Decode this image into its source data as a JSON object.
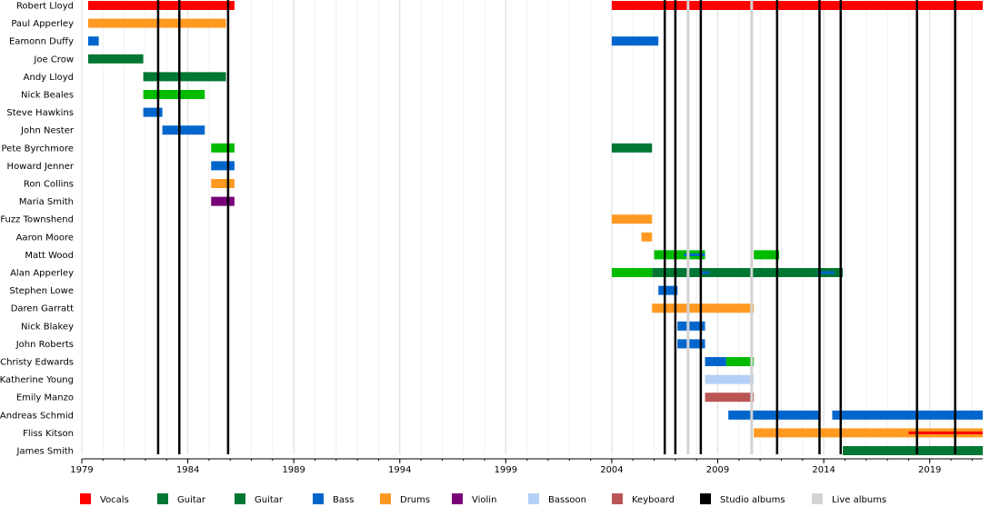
{
  "chart_data": {
    "type": "timeline",
    "x_range": [
      1979.0,
      2021.5
    ],
    "major_ticks": [
      1979,
      1984,
      1989,
      1994,
      1999,
      2004,
      2009,
      2014,
      2019
    ],
    "tick_labels": [
      "1979",
      "1984",
      "1989",
      "1994",
      "1999",
      "2004",
      "2009",
      "2014",
      "2019"
    ],
    "members": [
      "Robert Lloyd",
      "Paul Apperley",
      "Eamonn Duffy",
      "Joe Crow",
      "Andy Lloyd",
      "Nick Beales",
      "Steve Hawkins",
      "John Nester",
      "Pete Byrchmore",
      "Howard Jenner",
      "Ron Collins",
      "Maria Smith",
      "Fuzz Townshend",
      "Aaron Moore",
      "Matt Wood",
      "Alan Apperley",
      "Stephen Lowe",
      "Daren Garratt",
      "Nick Blakey",
      "John Roberts",
      "Christy Edwards",
      "Katherine Young",
      "Emily Manzo",
      "Andreas Schmid",
      "Fliss Kitson",
      "James Smith"
    ],
    "colors": {
      "vocals": "#ff0000",
      "guitar": "#00bb00",
      "guitar2": "#007733",
      "bass": "#0066cc",
      "drums": "#ff9922",
      "violin": "#770077",
      "bassoon": "#b5d0f5",
      "keyboard": "#bb5555",
      "studio": "#000000",
      "live": "#d3d3d3"
    },
    "bars": [
      {
        "row": 0,
        "start": 1979.3,
        "end": 1986.2,
        "role": "vocals"
      },
      {
        "row": 0,
        "start": 2004.0,
        "end": 2021.5,
        "role": "vocals"
      },
      {
        "row": 1,
        "start": 1979.3,
        "end": 1985.8,
        "role": "drums"
      },
      {
        "row": 2,
        "start": 1979.3,
        "end": 1979.8,
        "role": "bass"
      },
      {
        "row": 2,
        "start": 2004.0,
        "end": 2006.2,
        "role": "bass"
      },
      {
        "row": 3,
        "start": 1979.3,
        "end": 1981.9,
        "role": "guitar2"
      },
      {
        "row": 4,
        "start": 1981.9,
        "end": 1985.8,
        "role": "guitar2"
      },
      {
        "row": 5,
        "start": 1981.9,
        "end": 1984.8,
        "role": "guitar"
      },
      {
        "row": 6,
        "start": 1981.9,
        "end": 1982.8,
        "role": "bass"
      },
      {
        "row": 7,
        "start": 1982.8,
        "end": 1984.8,
        "role": "bass"
      },
      {
        "row": 8,
        "start": 1985.1,
        "end": 1986.2,
        "role": "guitar"
      },
      {
        "row": 8,
        "start": 2004.0,
        "end": 2005.9,
        "role": "guitar2"
      },
      {
        "row": 9,
        "start": 1985.1,
        "end": 1986.2,
        "role": "bass"
      },
      {
        "row": 10,
        "start": 1985.1,
        "end": 1986.2,
        "role": "drums"
      },
      {
        "row": 11,
        "start": 1985.1,
        "end": 1986.2,
        "role": "violin"
      },
      {
        "row": 12,
        "start": 2004.0,
        "end": 2005.9,
        "role": "drums"
      },
      {
        "row": 13,
        "start": 2005.4,
        "end": 2005.9,
        "role": "drums"
      },
      {
        "row": 14,
        "start": 2006.0,
        "end": 2008.4,
        "role": "guitar"
      },
      {
        "row": 14,
        "start": 2010.7,
        "end": 2011.9,
        "role": "guitar"
      },
      {
        "row": 15,
        "start": 2004.0,
        "end": 2005.9,
        "role": "guitar"
      },
      {
        "row": 15,
        "start": 2005.9,
        "end": 2014.9,
        "role": "guitar2"
      },
      {
        "row": 16,
        "start": 2006.2,
        "end": 2007.1,
        "role": "bass"
      },
      {
        "row": 17,
        "start": 2005.9,
        "end": 2010.7,
        "role": "drums"
      },
      {
        "row": 18,
        "start": 2007.1,
        "end": 2008.4,
        "role": "bass"
      },
      {
        "row": 19,
        "start": 2007.1,
        "end": 2008.4,
        "role": "bass"
      },
      {
        "row": 20,
        "start": 2008.4,
        "end": 2009.4,
        "role": "bass"
      },
      {
        "row": 20,
        "start": 2009.4,
        "end": 2010.7,
        "role": "guitar"
      },
      {
        "row": 21,
        "start": 2008.4,
        "end": 2010.7,
        "role": "bassoon"
      },
      {
        "row": 22,
        "start": 2008.4,
        "end": 2010.7,
        "role": "keyboard"
      },
      {
        "row": 23,
        "start": 2009.5,
        "end": 2013.8,
        "role": "bass"
      },
      {
        "row": 23,
        "start": 2014.4,
        "end": 2021.5,
        "role": "bass"
      },
      {
        "row": 24,
        "start": 2010.7,
        "end": 2021.5,
        "role": "drums"
      },
      {
        "row": 25,
        "start": 2014.9,
        "end": 2021.5,
        "role": "guitar2"
      }
    ],
    "thin_bars": [
      {
        "row": 14,
        "start": 2007.4,
        "end": 2008.4,
        "role": "bass"
      },
      {
        "row": 15,
        "start": 2008.2,
        "end": 2008.6,
        "role": "bass"
      },
      {
        "row": 15,
        "start": 2013.7,
        "end": 2014.5,
        "role": "bass"
      },
      {
        "row": 24,
        "start": 2018.0,
        "end": 2021.5,
        "role": "vocals"
      }
    ],
    "studio_albums": [
      1982.6,
      1983.6,
      1985.9,
      2006.5,
      2007.0,
      2008.2,
      2011.8,
      2013.8,
      2014.8,
      2018.4,
      2020.2
    ],
    "live_albums": [
      2007.6,
      2010.6
    ],
    "legend": [
      {
        "label": "Vocals",
        "role": "vocals"
      },
      {
        "label": "Guitar",
        "role": "guitar2"
      },
      {
        "label": "Guitar",
        "role": "guitar2"
      },
      {
        "label": "Bass",
        "role": "bass"
      },
      {
        "label": "Drums",
        "role": "drums"
      },
      {
        "label": "Violin",
        "role": "violin"
      },
      {
        "label": "Bassoon",
        "role": "bassoon"
      },
      {
        "label": "Keyboard",
        "role": "keyboard"
      },
      {
        "label": "Studio albums",
        "role": "studio"
      },
      {
        "label": "Live albums",
        "role": "live"
      }
    ]
  }
}
